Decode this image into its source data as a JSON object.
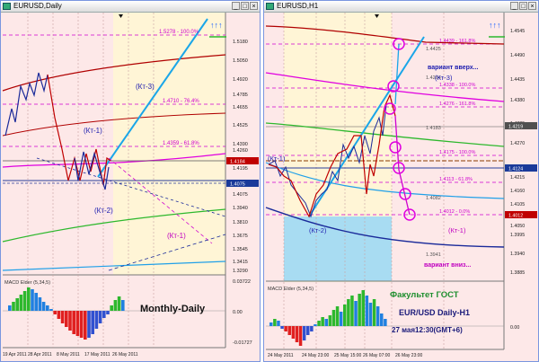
{
  "left_window": {
    "title": "EURUSD,Daily",
    "price_ticks": [
      "1.5180",
      "1.5050",
      "1.4920",
      "1.4785",
      "1.4655",
      "1.4525",
      "1.4390",
      "1.4260",
      "1.4195",
      "1.4075",
      "1.3940",
      "1.3810",
      "1.3675",
      "1.3545",
      "1.3415",
      "1.3290"
    ],
    "price_tags": [
      "1.4184",
      "1.4075"
    ],
    "fib_labels": [
      "1.5278 - 100.0%",
      "1.4710 - 76.4%",
      "1.4359 - 61.8%"
    ],
    "wave_labels": [
      "(Кт-3)",
      "(Кт-1)",
      "(Кт-2)",
      "(Кт-1)"
    ],
    "macd_title": "MACD Elder (5,34,5)",
    "macd_ticks": [
      "0.03722",
      "0.00",
      "-0.01727"
    ],
    "caption": "Monthly-Daily",
    "date_ticks": [
      "19 Apr 2011",
      "28 Apr 2011",
      "8 May 2011",
      "17 May 2011",
      "26 May 2011"
    ]
  },
  "right_window": {
    "title": "EURUSD,H1",
    "price_ticks": [
      "1.4545",
      "1.4490",
      "1.4435",
      "1.4380",
      "1.4325",
      "1.4270",
      "1.4215",
      "1.4160",
      "1.4105",
      "1.4050",
      "1.3995",
      "1.3940",
      "1.3885"
    ],
    "price_tags": [
      "1.4219",
      "1.4124",
      "1.4012"
    ],
    "level_labels": [
      "1.4425",
      "1.4264",
      "1.4183",
      "1.4082",
      "1.3941"
    ],
    "fib_labels": [
      "1.4439 - 161.8%",
      "1.4338 - 100.0%",
      "1.4276 - 161.8%",
      "1.4175 - 100.0%",
      "1.4113 - 61.8%",
      "1.4012 - 0.0%"
    ],
    "wave_labels": [
      "(Кт-3)",
      "(Кт-1)",
      "(Кт-2)",
      "(Кт-1)"
    ],
    "notes": [
      "вариант вверх...",
      "вариант вниз..."
    ],
    "macd_title": "MACD Elder (5,34,5)",
    "macd_ticks": [
      "0.00"
    ],
    "info": [
      "Факультет ГОСТ",
      "EUR/USD Daily-H1",
      "27  мая12:30(GMT+6)"
    ],
    "date_ticks": [
      "24 May 2011",
      "24 May 23:00",
      "25 May 15:00",
      "26 May 07:00",
      "26 May 23:00"
    ]
  },
  "colors": {
    "window_bg": "#fde8e8",
    "shade_yellow": "#fff5d6",
    "shade_blue": "#a8dcf2",
    "fib_magenta": "#d000d0",
    "trend_blue": "#1aa6e8",
    "price_red": "#c00000",
    "ma_red": "#b00000",
    "ma_green": "#2db82d",
    "ma_magenta": "#e000e0",
    "ma_cyan": "#20a0e8",
    "ma_navy": "#1a2a9a",
    "caption_green": "#1f8f2f",
    "caption_navy": "#1a1a7a"
  }
}
